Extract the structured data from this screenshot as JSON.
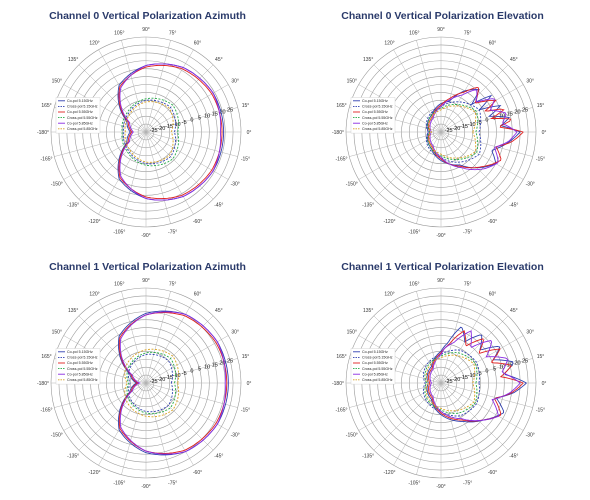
{
  "chart_data": [
    {
      "type": "polar",
      "title": "Channel 0 Vertical Polarization Azimuth",
      "rlim": [
        -30,
        30
      ],
      "r_ticks": [
        -25,
        -20,
        -15,
        -10,
        -5,
        0,
        5,
        10,
        15,
        20,
        25
      ],
      "angle_ticks": [
        "90°",
        "75°",
        "60°",
        "45°",
        "30°",
        "15°",
        "0°",
        "-15°",
        "-30°",
        "-45°",
        "-60°",
        "-75°",
        "-90°",
        "-105°",
        "-120°",
        "-135°",
        "-150°",
        "-165°",
        "-180°",
        "165°",
        "150°",
        "135°",
        "120°",
        "105°"
      ],
      "grid": true,
      "legend": "left",
      "series": [
        {
          "name": "Co-pol 5.15GHz",
          "color": "#2f3fb0",
          "dash": "solid",
          "angles": [
            0,
            30,
            60,
            90,
            120,
            150,
            180,
            210,
            240,
            270,
            300,
            330,
            360
          ],
          "values": [
            19,
            19,
            17,
            12,
            4,
            -16,
            -20,
            -16,
            4,
            12,
            17,
            19,
            19
          ]
        },
        {
          "name": "Cross-pol 5.15GHz",
          "color": "#2f3fb0",
          "dash": "dashed",
          "angles": [
            0,
            45,
            90,
            135,
            180,
            225,
            270,
            315,
            360
          ],
          "values": [
            -12,
            -8,
            -10,
            -14,
            -16,
            -14,
            -10,
            -8,
            -12
          ]
        },
        {
          "name": "Co-pol 5.55GHz",
          "color": "#e02020",
          "dash": "solid",
          "angles": [
            0,
            30,
            60,
            90,
            120,
            150,
            180,
            210,
            240,
            270,
            300,
            330,
            360
          ],
          "values": [
            18,
            18,
            16,
            11,
            3,
            -17,
            -21,
            -17,
            3,
            11,
            16,
            18,
            18
          ]
        },
        {
          "name": "Cross-pol 5.55GHz",
          "color": "#22aa44",
          "dash": "dashed",
          "angles": [
            0,
            45,
            90,
            135,
            180,
            225,
            270,
            315,
            360
          ],
          "values": [
            -10,
            -6,
            -9,
            -13,
            -15,
            -13,
            -9,
            -6,
            -10
          ]
        },
        {
          "name": "Co-pol 5.85GHz",
          "color": "#8a2be2",
          "dash": "solid",
          "angles": [
            0,
            30,
            60,
            90,
            120,
            150,
            180,
            210,
            240,
            270,
            300,
            330,
            360
          ],
          "values": [
            17,
            19,
            17,
            12,
            2,
            -18,
            -22,
            -18,
            2,
            12,
            17,
            19,
            17
          ]
        },
        {
          "name": "Cross-pol 5.85GHz",
          "color": "#d8a020",
          "dash": "dashed",
          "angles": [
            0,
            45,
            90,
            135,
            180,
            225,
            270,
            315,
            360
          ],
          "values": [
            -14,
            -9,
            -11,
            -15,
            -17,
            -15,
            -11,
            -9,
            -14
          ]
        }
      ]
    },
    {
      "type": "polar",
      "title": "Channel 0 Vertical Polarization Elevation",
      "rlim": [
        -30,
        30
      ],
      "r_ticks": [
        -25,
        -20,
        -15,
        -10,
        -5,
        0,
        5,
        10,
        15,
        20,
        25
      ],
      "angle_ticks": [
        "90°",
        "75°",
        "60°",
        "45°",
        "30°",
        "15°",
        "0°",
        "-15°",
        "-30°",
        "-45°",
        "-60°",
        "-75°",
        "-90°",
        "-105°",
        "-120°",
        "-135°",
        "-150°",
        "-165°",
        "-180°",
        "165°",
        "150°",
        "135°",
        "120°",
        "105°"
      ],
      "grid": true,
      "legend": "left",
      "series": [
        {
          "name": "Co-pol 5.15GHz",
          "color": "#2f3fb0",
          "dash": "solid",
          "angles": [
            0,
            6,
            12,
            18,
            24,
            30,
            36,
            42,
            48,
            60,
            75,
            90,
            120,
            180,
            240,
            270,
            300,
            315,
            330,
            340,
            350,
            360
          ],
          "values": [
            20,
            8,
            14,
            2,
            11,
            -2,
            9,
            -4,
            6,
            0,
            -10,
            -12,
            -18,
            -22,
            -18,
            -12,
            -6,
            2,
            10,
            4,
            12,
            20
          ]
        },
        {
          "name": "Cross-pol 5.15GHz",
          "color": "#2f3fb0",
          "dash": "dashed",
          "angles": [
            0,
            30,
            60,
            90,
            135,
            180,
            225,
            270,
            300,
            330,
            360
          ],
          "values": [
            -6,
            -2,
            -8,
            -14,
            -18,
            -22,
            -18,
            -14,
            -8,
            -2,
            -6
          ]
        },
        {
          "name": "Co-pol 5.55GHz",
          "color": "#e02020",
          "dash": "solid",
          "angles": [
            0,
            5,
            10,
            15,
            20,
            25,
            30,
            40,
            50,
            60,
            75,
            90,
            120,
            180,
            240,
            270,
            300,
            320,
            335,
            345,
            352,
            360
          ],
          "values": [
            22,
            6,
            16,
            3,
            13,
            0,
            10,
            -2,
            7,
            -1,
            -8,
            -13,
            -19,
            -23,
            -19,
            -13,
            -5,
            4,
            12,
            6,
            15,
            22
          ]
        },
        {
          "name": "Cross-pol 5.55GHz",
          "color": "#22aa44",
          "dash": "dashed",
          "angles": [
            0,
            30,
            60,
            90,
            135,
            180,
            225,
            270,
            300,
            330,
            360
          ],
          "values": [
            -8,
            -4,
            -10,
            -15,
            -19,
            -23,
            -19,
            -15,
            -10,
            -4,
            -8
          ]
        },
        {
          "name": "Co-pol 5.85GHz",
          "color": "#8a2be2",
          "dash": "solid",
          "angles": [
            0,
            8,
            16,
            24,
            32,
            40,
            50,
            60,
            75,
            90,
            120,
            180,
            240,
            270,
            300,
            320,
            332,
            344,
            352,
            360
          ],
          "values": [
            18,
            9,
            13,
            4,
            10,
            -1,
            5,
            -3,
            -9,
            -14,
            -20,
            -24,
            -20,
            -14,
            -4,
            6,
            11,
            5,
            13,
            18
          ]
        },
        {
          "name": "Cross-pol 5.85GHz",
          "color": "#d8a020",
          "dash": "dashed",
          "angles": [
            0,
            30,
            60,
            90,
            135,
            180,
            225,
            270,
            300,
            330,
            360
          ],
          "values": [
            -10,
            -5,
            -11,
            -16,
            -20,
            -24,
            -20,
            -16,
            -11,
            -5,
            -10
          ]
        }
      ]
    },
    {
      "type": "polar",
      "title": "Channel 1 Vertical Polarization Azimuth",
      "rlim": [
        -30,
        30
      ],
      "r_ticks": [
        -25,
        -20,
        -15,
        -10,
        -5,
        0,
        5,
        10,
        15,
        20,
        25
      ],
      "angle_ticks": [
        "90°",
        "75°",
        "60°",
        "45°",
        "30°",
        "15°",
        "0°",
        "-15°",
        "-30°",
        "-45°",
        "-60°",
        "-75°",
        "-90°",
        "-105°",
        "-120°",
        "-135°",
        "-150°",
        "-165°",
        "-180°",
        "165°",
        "150°",
        "135°",
        "120°",
        "105°"
      ],
      "grid": true,
      "legend": "left",
      "series": [
        {
          "name": "Co-pol 5.15GHz",
          "color": "#2f3fb0",
          "dash": "solid",
          "angles": [
            0,
            30,
            60,
            90,
            120,
            150,
            180,
            210,
            240,
            270,
            300,
            330,
            360
          ],
          "values": [
            22,
            22,
            20,
            14,
            4,
            -18,
            -24,
            -18,
            4,
            14,
            20,
            22,
            22
          ]
        },
        {
          "name": "Cross-pol 5.15GHz",
          "color": "#2f3fb0",
          "dash": "dashed",
          "angles": [
            0,
            45,
            90,
            135,
            180,
            225,
            270,
            315,
            360
          ],
          "values": [
            -14,
            -10,
            -12,
            -16,
            -20,
            -16,
            -12,
            -10,
            -14
          ]
        },
        {
          "name": "Co-pol 5.55GHz",
          "color": "#e02020",
          "dash": "solid",
          "angles": [
            0,
            30,
            60,
            90,
            120,
            150,
            180,
            210,
            240,
            270,
            300,
            330,
            360
          ],
          "values": [
            21,
            21,
            19,
            13,
            3,
            -19,
            -25,
            -19,
            3,
            13,
            19,
            21,
            21
          ]
        },
        {
          "name": "Cross-pol 5.55GHz",
          "color": "#22aa44",
          "dash": "dashed",
          "angles": [
            0,
            45,
            90,
            135,
            180,
            225,
            270,
            315,
            360
          ],
          "values": [
            -12,
            -8,
            -11,
            -15,
            -19,
            -15,
            -11,
            -8,
            -12
          ]
        },
        {
          "name": "Co-pol 5.85GHz",
          "color": "#8a2be2",
          "dash": "solid",
          "angles": [
            0,
            30,
            60,
            90,
            120,
            150,
            180,
            210,
            240,
            270,
            300,
            330,
            360
          ],
          "values": [
            20,
            22,
            20,
            13,
            2,
            -20,
            -26,
            -20,
            2,
            13,
            20,
            22,
            20
          ]
        },
        {
          "name": "Cross-pol 5.85GHz",
          "color": "#d8a020",
          "dash": "dashed",
          "angles": [
            0,
            45,
            90,
            135,
            180,
            225,
            270,
            315,
            360
          ],
          "values": [
            -10,
            -6,
            -9,
            -13,
            -18,
            -13,
            -9,
            -6,
            -10
          ]
        }
      ]
    },
    {
      "type": "polar",
      "title": "Channel 1 Vertical Polarization Elevation",
      "rlim": [
        -30,
        30
      ],
      "r_ticks": [
        -25,
        -20,
        -15,
        -10,
        -5,
        0,
        5,
        10,
        15,
        20,
        25
      ],
      "angle_ticks": [
        "90°",
        "75°",
        "60°",
        "45°",
        "30°",
        "15°",
        "0°",
        "-15°",
        "-30°",
        "-45°",
        "-60°",
        "-75°",
        "-90°",
        "-105°",
        "-120°",
        "-135°",
        "-150°",
        "-165°",
        "-180°",
        "165°",
        "150°",
        "135°",
        "120°",
        "105°"
      ],
      "grid": true,
      "legend": "left",
      "series": [
        {
          "name": "Co-pol 5.15GHz",
          "color": "#2f3fb0",
          "dash": "solid",
          "angles": [
            0,
            8,
            16,
            24,
            32,
            40,
            50,
            60,
            70,
            80,
            90,
            120,
            180,
            240,
            270,
            300,
            320,
            335,
            345,
            352,
            360
          ],
          "values": [
            24,
            10,
            18,
            6,
            14,
            2,
            10,
            0,
            8,
            -4,
            -10,
            -18,
            -22,
            -18,
            -10,
            -2,
            6,
            14,
            6,
            16,
            24
          ]
        },
        {
          "name": "Cross-pol 5.15GHz",
          "color": "#2f3fb0",
          "dash": "dashed",
          "angles": [
            0,
            30,
            60,
            90,
            135,
            180,
            225,
            270,
            300,
            330,
            360
          ],
          "values": [
            -6,
            -4,
            -6,
            -12,
            -16,
            -20,
            -16,
            -12,
            -6,
            -4,
            -6
          ]
        },
        {
          "name": "Co-pol 5.55GHz",
          "color": "#e02020",
          "dash": "solid",
          "angles": [
            0,
            6,
            14,
            22,
            30,
            38,
            46,
            56,
            66,
            78,
            90,
            120,
            180,
            240,
            270,
            300,
            318,
            332,
            344,
            352,
            360
          ],
          "values": [
            22,
            8,
            16,
            4,
            13,
            0,
            9,
            -2,
            6,
            -5,
            -11,
            -19,
            -23,
            -19,
            -11,
            -3,
            5,
            13,
            5,
            15,
            22
          ]
        },
        {
          "name": "Cross-pol 5.55GHz",
          "color": "#22aa44",
          "dash": "dashed",
          "angles": [
            0,
            30,
            60,
            90,
            135,
            180,
            225,
            270,
            300,
            330,
            360
          ],
          "values": [
            -8,
            -5,
            -8,
            -13,
            -17,
            -21,
            -17,
            -13,
            -8,
            -5,
            -8
          ]
        },
        {
          "name": "Co-pol 5.85GHz",
          "color": "#8a2be2",
          "dash": "solid",
          "angles": [
            0,
            10,
            20,
            30,
            40,
            50,
            60,
            72,
            84,
            90,
            120,
            180,
            240,
            270,
            300,
            316,
            330,
            342,
            352,
            360
          ],
          "values": [
            20,
            9,
            15,
            3,
            12,
            -1,
            8,
            -3,
            -8,
            -12,
            -20,
            -24,
            -20,
            -12,
            -4,
            4,
            12,
            4,
            14,
            20
          ]
        },
        {
          "name": "Cross-pol 5.85GHz",
          "color": "#d8a020",
          "dash": "dashed",
          "angles": [
            0,
            30,
            60,
            90,
            135,
            180,
            225,
            270,
            300,
            330,
            360
          ],
          "values": [
            -10,
            -6,
            -10,
            -14,
            -18,
            -22,
            -18,
            -14,
            -10,
            -6,
            -10
          ]
        }
      ]
    }
  ]
}
